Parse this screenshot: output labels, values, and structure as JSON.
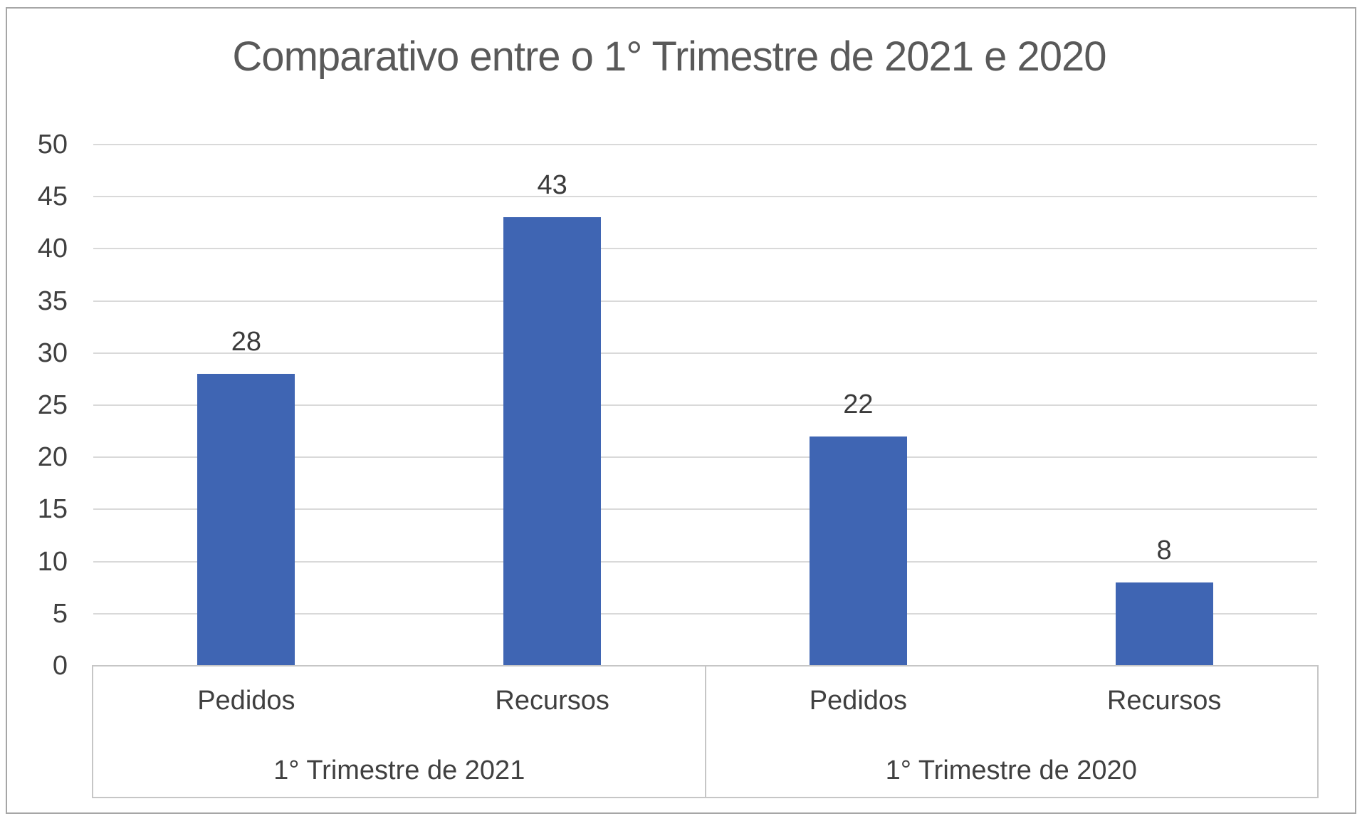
{
  "chart_data": {
    "type": "bar",
    "title": "Comparativo entre o 1° Trimestre de 2021 e 2020",
    "groups": [
      {
        "label": "1° Trimestre de 2021",
        "categories": [
          "Pedidos",
          "Recursos"
        ],
        "values": [
          28,
          43
        ]
      },
      {
        "label": "1° Trimestre de 2020",
        "categories": [
          "Pedidos",
          "Recursos"
        ],
        "values": [
          22,
          8
        ]
      }
    ],
    "categories": [
      "Pedidos",
      "Recursos",
      "Pedidos",
      "Recursos"
    ],
    "values": [
      28,
      43,
      22,
      8
    ],
    "data_labels": [
      "28",
      "43",
      "22",
      "8"
    ],
    "ylabel": "",
    "xlabel": "",
    "ylim": [
      0,
      50
    ],
    "yticks": [
      0,
      5,
      10,
      15,
      20,
      25,
      30,
      35,
      40,
      45,
      50
    ],
    "grid": true,
    "legend_position": "none",
    "colors": {
      "bar": "#3f65b3",
      "gridline": "#d9d9d9",
      "axis_line": "#c6c6c6",
      "tick_text": "#404040",
      "data_label_text": "#3b3b3b",
      "title_text": "#595959",
      "frame_border": "#a6a6a6",
      "background": "#ffffff"
    }
  }
}
